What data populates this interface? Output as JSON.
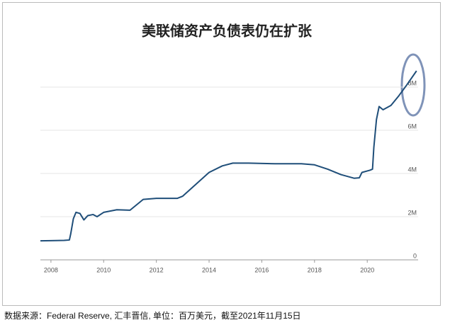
{
  "chart_data": {
    "type": "line",
    "title": "美联储资产负债表仍在扩张",
    "x": [
      2007.6,
      2008.0,
      2008.5,
      2008.7,
      2008.75,
      2008.85,
      2008.95,
      2009.1,
      2009.25,
      2009.4,
      2009.6,
      2009.75,
      2010.0,
      2010.5,
      2011.0,
      2011.5,
      2012.0,
      2012.5,
      2012.8,
      2013.0,
      2013.5,
      2014.0,
      2014.5,
      2014.9,
      2015.5,
      2016.5,
      2017.5,
      2018.0,
      2018.5,
      2019.0,
      2019.5,
      2019.7,
      2019.8,
      2020.1,
      2020.2,
      2020.25,
      2020.35,
      2020.45,
      2020.6,
      2020.9,
      2021.2,
      2021.5,
      2021.87
    ],
    "values": [
      0.88,
      0.89,
      0.9,
      0.92,
      1.2,
      1.9,
      2.2,
      2.15,
      1.85,
      2.05,
      2.1,
      2.0,
      2.2,
      2.32,
      2.3,
      2.8,
      2.85,
      2.85,
      2.85,
      2.95,
      3.5,
      4.05,
      4.35,
      4.48,
      4.48,
      4.45,
      4.45,
      4.4,
      4.2,
      3.95,
      3.78,
      3.8,
      4.05,
      4.15,
      4.2,
      5.2,
      6.5,
      7.1,
      6.95,
      7.15,
      7.6,
      8.1,
      8.75
    ],
    "color": "#1f4e79",
    "xlim": [
      2007.6,
      2021.93
    ],
    "xticks": [
      2008,
      2010,
      2012,
      2014,
      2016,
      2018,
      2020
    ],
    "ylim": [
      0,
      8.8
    ],
    "yticks": [
      0,
      {
        "value": 2,
        "label": "2M"
      },
      {
        "value": 4,
        "label": "4M"
      },
      {
        "value": 6,
        "label": "6M"
      },
      {
        "value": 8,
        "label": "8M"
      }
    ],
    "grid": true
  },
  "footnote": "数据来源：Federal Reserve, 汇丰晋信, 单位：百万美元，截至2021年11月15日"
}
